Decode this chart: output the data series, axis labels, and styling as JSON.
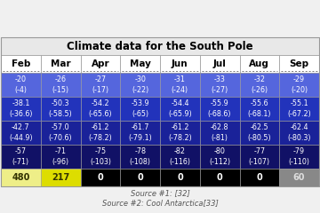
{
  "title": "Climate data for the South Pole",
  "columns": [
    "Feb",
    "Mar",
    "Apr",
    "May",
    "Jun",
    "Jul",
    "Aug",
    "Sep"
  ],
  "rows": [
    {
      "values": [
        "-20\n(-4)",
        "-26\n(-15)",
        "-27\n(-17)",
        "-30\n(-22)",
        "-31\n(-24)",
        "-33\n(-27)",
        "-32\n(-26)",
        "-29\n(-20)"
      ],
      "bg": "#5566dd",
      "text": "#ffffff"
    },
    {
      "values": [
        "-38.1\n(-36.6)",
        "-50.3\n(-58.5)",
        "-54.2\n(-65.6)",
        "-53.9\n(-65)",
        "-54.4\n(-65.9)",
        "-55.9\n(-68.6)",
        "-55.6\n(-68.1)",
        "-55.1\n(-67.2)"
      ],
      "bg": "#2233bb",
      "text": "#ffffff"
    },
    {
      "values": [
        "-42.7\n(-44.9)",
        "-57.0\n(-70.6)",
        "-61.2\n(-78.2)",
        "-61.7\n(-79.1)",
        "-61.2\n(-78.2)",
        "-62.8\n(-81)",
        "-62.5\n(-80.5)",
        "-62.4\n(-80.3)"
      ],
      "bg": "#1a2299",
      "text": "#ffffff"
    },
    {
      "values": [
        "-57\n(-71)",
        "-71\n(-96)",
        "-75\n(-103)",
        "-78\n(-108)",
        "-82\n(-116)",
        "-80\n(-112)",
        "-77\n(-107)",
        "-79\n(-110)"
      ],
      "bg": "#111166",
      "text": "#ffffff"
    },
    {
      "values": [
        "480",
        "217",
        "0",
        "0",
        "0",
        "0",
        "0",
        "60"
      ],
      "bg_per_cell": [
        "#eeee88",
        "#dddd00",
        "#000000",
        "#000000",
        "#000000",
        "#000000",
        "#000000",
        "#888888"
      ],
      "text_per_cell": [
        "#333300",
        "#333300",
        "#ffffff",
        "#ffffff",
        "#ffffff",
        "#ffffff",
        "#ffffff",
        "#dddddd"
      ]
    }
  ],
  "title_bg": "#e8e8e8",
  "header_bg": "#ffffff",
  "fig_bg": "#f0f0f0",
  "border_color": "#999999",
  "source1": "Source #1: [32]",
  "source2": "Source #2: Cool Antarctica[33]"
}
